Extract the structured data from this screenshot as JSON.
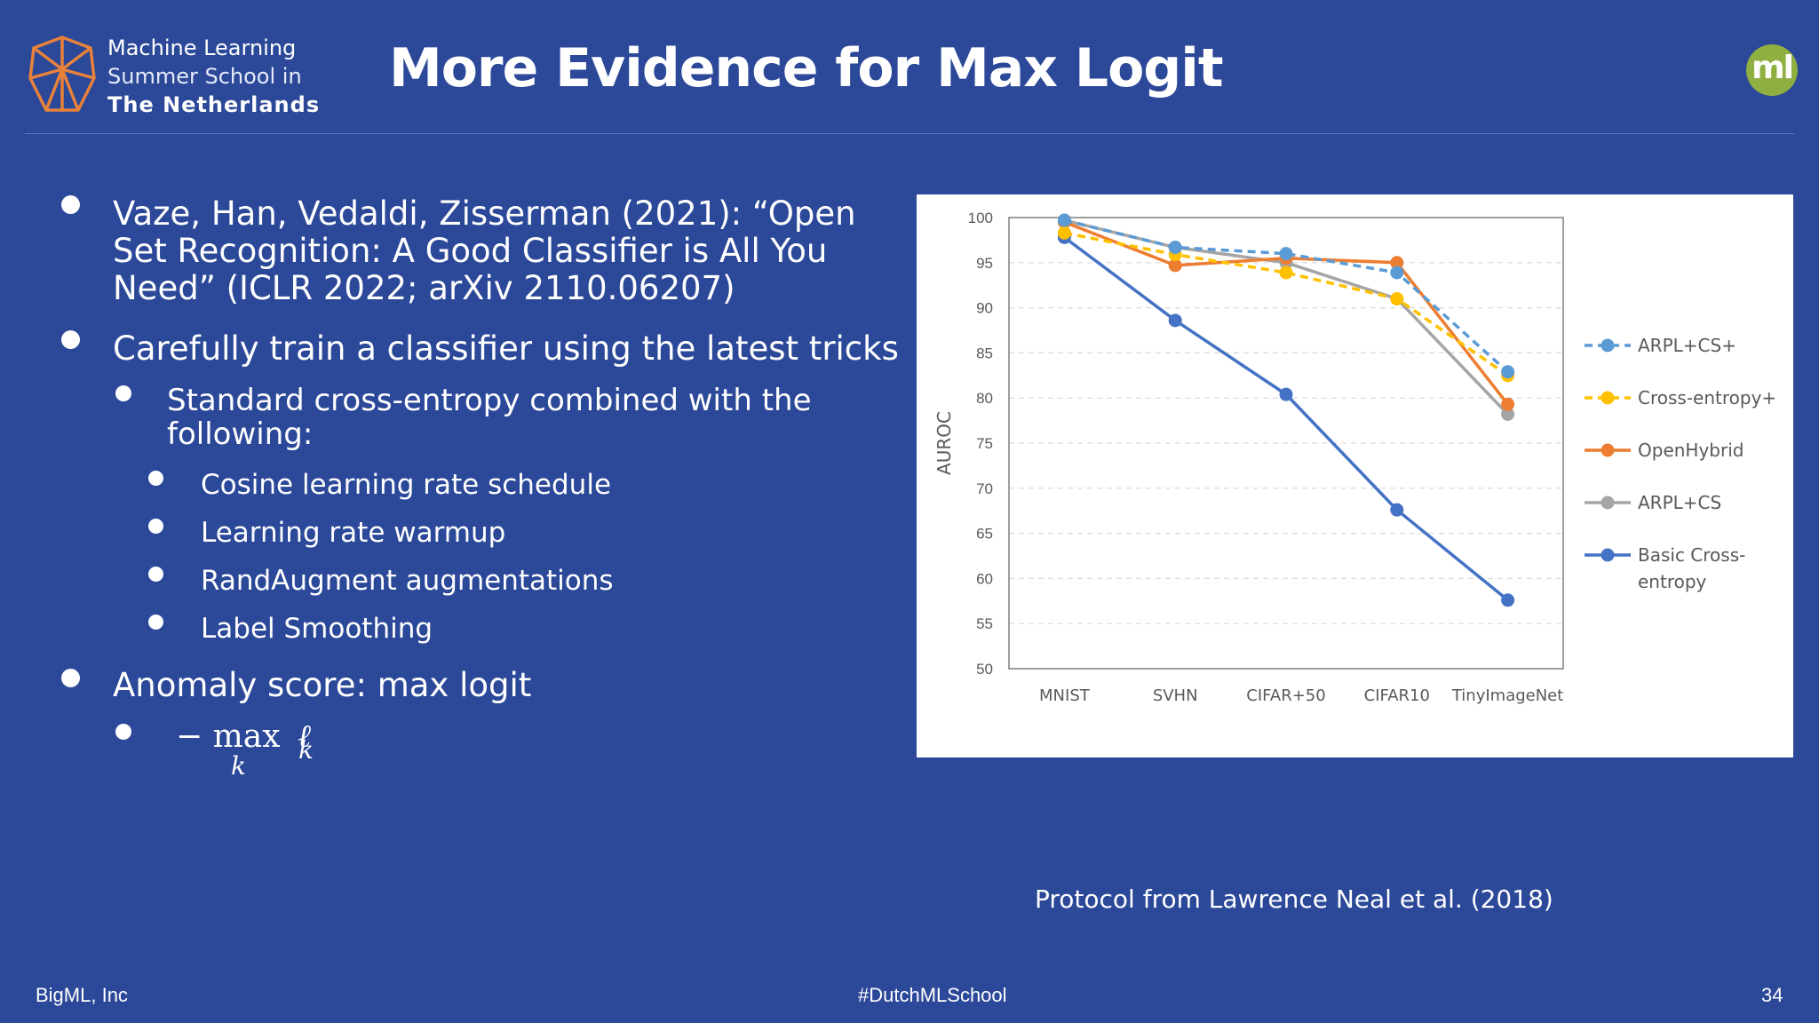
{
  "header": {
    "school_line1": "Machine Learning",
    "school_line2": "Summer School in",
    "school_line3": "The Netherlands",
    "title": "More Evidence for Max Logit",
    "badge": "ml"
  },
  "bullets": [
    {
      "level": 1,
      "lines": [
        "Vaze, Han, Vedaldi, Zisserman (2021): “Open",
        "Set Recognition: A Good Classifier is All You",
        "Need” (ICLR 2022; arXiv 2110.06207)"
      ]
    },
    {
      "level": 1,
      "lines": [
        "Carefully train a classifier using the latest tricks"
      ]
    },
    {
      "level": 2,
      "lines": [
        "Standard cross-entropy combined with the",
        "following:"
      ]
    },
    {
      "level": 3,
      "lines": [
        "Cosine learning rate schedule"
      ]
    },
    {
      "level": 3,
      "lines": [
        "Learning rate warmup"
      ]
    },
    {
      "level": 3,
      "lines": [
        "RandAugment augmentations"
      ]
    },
    {
      "level": 3,
      "lines": [
        "Label Smoothing"
      ]
    },
    {
      "level": 1,
      "lines": [
        "Anomaly score: max logit"
      ]
    }
  ],
  "formula": {
    "minus_max": "− max",
    "ell": "ℓ",
    "k_sub": "k",
    "k_under": "k"
  },
  "chart_data": {
    "type": "line",
    "categories": [
      "MNIST",
      "SVHN",
      "CIFAR+50",
      "CIFAR10",
      "TinyImageNet"
    ],
    "ylabel": "AUROC",
    "ylim": [
      50,
      100
    ],
    "yticks": [
      50,
      55,
      60,
      65,
      70,
      75,
      80,
      85,
      90,
      95,
      100
    ],
    "grid": true,
    "legend_position": "right",
    "series": [
      {
        "name": "ARPL+CS+",
        "color": "#5b9bd5",
        "dashed": true,
        "values": [
          99.7,
          96.7,
          96.0,
          93.9,
          82.9
        ]
      },
      {
        "name": "Cross-entropy+",
        "color": "#ffc000",
        "dashed": true,
        "values": [
          98.3,
          95.9,
          93.9,
          91.0,
          82.5
        ]
      },
      {
        "name": "OpenHybrid",
        "color": "#ed7d31",
        "dashed": false,
        "values": [
          99.5,
          94.7,
          95.5,
          95.0,
          79.3
        ]
      },
      {
        "name": "ARPL+CS",
        "color": "#a5a5a5",
        "dashed": false,
        "values": [
          99.7,
          96.7,
          95.0,
          91.0,
          78.2
        ]
      },
      {
        "name": "Basic Cross-entropy",
        "name_lines": [
          "Basic Cross-",
          "entropy"
        ],
        "color": "#4472c4",
        "dashed": false,
        "values": [
          97.8,
          88.6,
          80.4,
          67.6,
          57.6
        ]
      }
    ]
  },
  "caption": "Protocol from Lawrence Neal et al. (2018)",
  "footer": {
    "left": "BigML, Inc",
    "center": "#DutchMLSchool",
    "right": "34"
  }
}
